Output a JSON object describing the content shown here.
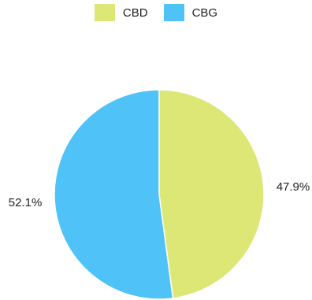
{
  "chart_data": {
    "type": "pie",
    "title": "",
    "legend_position": "top",
    "series": [
      {
        "name": "CBD",
        "value": 47.9,
        "label": "47.9%",
        "color": "#dce775"
      },
      {
        "name": "CBG",
        "value": 52.1,
        "label": "52.1%",
        "color": "#4fc3f7"
      }
    ]
  }
}
